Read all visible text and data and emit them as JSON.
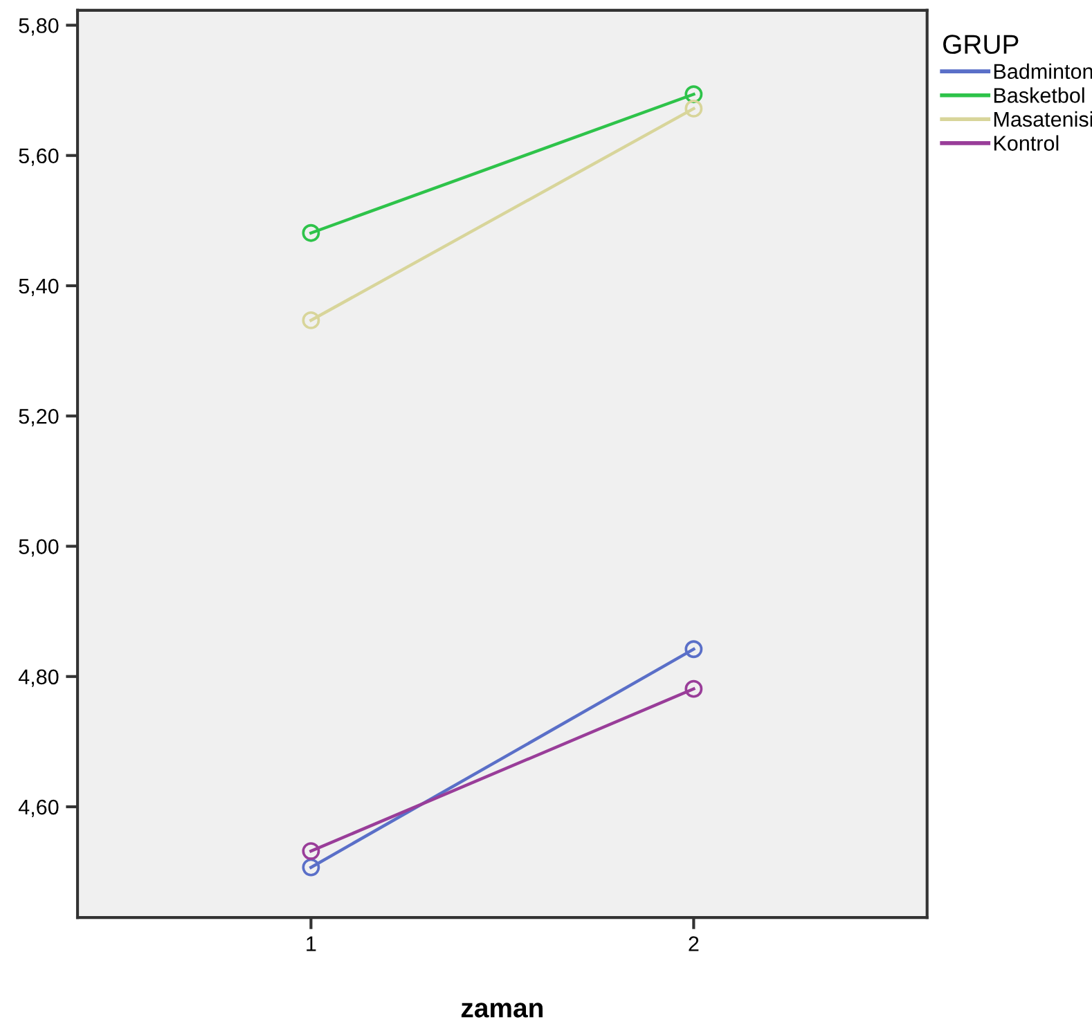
{
  "chart_data": {
    "type": "line",
    "xlabel": "zaman",
    "legend_title": "GRUP",
    "legend": "right",
    "marker": "circle",
    "line_style": "solid",
    "grid": false,
    "x": [
      1,
      2
    ],
    "xlim": [
      0.39,
      2.61
    ],
    "xticks": [
      1,
      2
    ],
    "ylim": [
      4.43,
      5.823
    ],
    "yticks": [
      {
        "value": 4.6,
        "label": "4,60"
      },
      {
        "value": 4.8,
        "label": "4,80"
      },
      {
        "value": 5.0,
        "label": "5,00"
      },
      {
        "value": 5.2,
        "label": "5,20"
      },
      {
        "value": 5.4,
        "label": "5,40"
      },
      {
        "value": 5.6,
        "label": "5,60"
      },
      {
        "value": 5.8,
        "label": "5,80"
      }
    ],
    "series": [
      {
        "name": "Badminton",
        "color": "#5a6fc8",
        "values": [
          4.507,
          4.842
        ]
      },
      {
        "name": "Basketbol",
        "color": "#2ec34a",
        "values": [
          5.481,
          5.694
        ]
      },
      {
        "name": "Masatenisi",
        "color": "#d8d59a",
        "values": [
          5.347,
          5.672
        ]
      },
      {
        "name": "Kontrol",
        "color": "#993d99",
        "values": [
          4.532,
          4.781
        ]
      }
    ]
  }
}
